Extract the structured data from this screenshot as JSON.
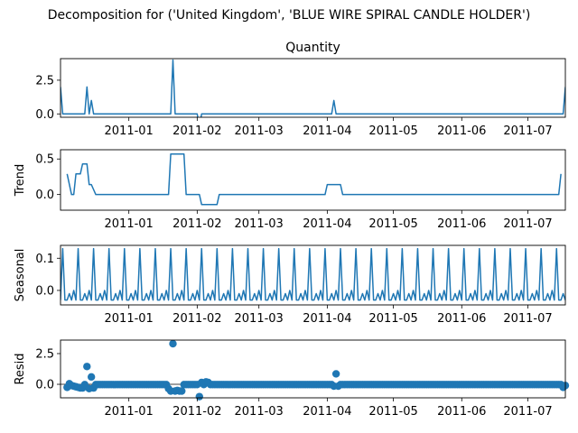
{
  "figure": {
    "suptitle": "Decomposition for ('United Kingdom', 'BLUE WIRE SPIRAL CANDLE HOLDER')"
  },
  "colors": {
    "series": "#1f77b4",
    "axis": "#000000",
    "background": "#ffffff"
  },
  "chart_data": [
    {
      "type": "line",
      "title": "Quantity",
      "ylabel": "",
      "ylim": [
        -0.25,
        4.1
      ],
      "yticks": [
        0.0,
        2.5
      ],
      "ytick_labels": [
        "0.0",
        "2.5"
      ],
      "xtick_labels": [
        "2011-01",
        "2011-02",
        "2011-03",
        "2011-04",
        "2011-05",
        "2011-06",
        "2011-07"
      ],
      "grid": false,
      "x": [
        "2010-12-01",
        "2010-12-02",
        "2010-12-05",
        "2010-12-12",
        "2010-12-13",
        "2010-12-14",
        "2010-12-15",
        "2010-12-16",
        "2011-01-20",
        "2011-01-21",
        "2011-01-22",
        "2011-02-01",
        "2011-02-02",
        "2011-02-03",
        "2011-04-03",
        "2011-04-04",
        "2011-04-05",
        "2011-07-17",
        "2011-07-18"
      ],
      "values": [
        2,
        0,
        0,
        0,
        2,
        0,
        1,
        0,
        0,
        4,
        0,
        0,
        -1,
        0,
        0,
        1,
        0,
        0,
        2
      ]
    },
    {
      "type": "line",
      "title": "",
      "ylabel": "Trend",
      "ylim": [
        -0.22,
        0.63
      ],
      "yticks": [
        0.0,
        0.5
      ],
      "ytick_labels": [
        "0.0",
        "0.5"
      ],
      "xtick_labels": [
        "2011-01",
        "2011-02",
        "2011-03",
        "2011-04",
        "2011-05",
        "2011-06",
        "2011-07"
      ],
      "grid": false,
      "x": [
        "2010-12-04",
        "2010-12-06",
        "2010-12-07",
        "2010-12-08",
        "2010-12-10",
        "2010-12-11",
        "2010-12-13",
        "2010-12-14",
        "2010-12-15",
        "2010-12-17",
        "2010-12-19",
        "2011-01-19",
        "2011-01-20",
        "2011-01-26",
        "2011-01-27",
        "2011-02-02",
        "2011-02-03",
        "2011-02-10",
        "2011-02-11",
        "2011-03-31",
        "2011-04-01",
        "2011-04-07",
        "2011-04-08",
        "2011-07-15",
        "2011-07-16"
      ],
      "values": [
        0.29,
        0.0,
        0.0,
        0.29,
        0.29,
        0.43,
        0.43,
        0.14,
        0.14,
        0.0,
        0.0,
        0.0,
        0.57,
        0.57,
        0.0,
        0.0,
        -0.14,
        -0.14,
        0.0,
        0.0,
        0.14,
        0.14,
        0.0,
        0.0,
        0.29
      ]
    },
    {
      "type": "line",
      "title": "",
      "ylabel": "Seasonal",
      "ylim": [
        -0.045,
        0.14
      ],
      "yticks": [
        0.0,
        0.1
      ],
      "ytick_labels": [
        "0.0",
        "0.1"
      ],
      "xtick_labels": [
        "2011-01",
        "2011-02",
        "2011-03",
        "2011-04",
        "2011-05",
        "2011-06",
        "2011-07"
      ],
      "grid": false,
      "period_days": 7,
      "start": "2010-12-01",
      "end": "2011-07-18",
      "pattern": [
        -0.03,
        0.13,
        -0.03,
        -0.03,
        -0.01,
        -0.03,
        0.0
      ]
    },
    {
      "type": "scatter",
      "title": "",
      "ylabel": "Resid",
      "ylim": [
        -1.1,
        3.6
      ],
      "yticks": [
        0.0,
        2.5
      ],
      "ytick_labels": [
        "0.0",
        "2.5"
      ],
      "xtick_labels": [
        "2011-01",
        "2011-02",
        "2011-03",
        "2011-04",
        "2011-05",
        "2011-06",
        "2011-07"
      ],
      "grid": false,
      "baseline": 0,
      "x_start": "2010-12-04",
      "x_end": "2011-07-18",
      "default_value": -0.02,
      "overrides": [
        {
          "x": "2010-12-04",
          "value": -0.25
        },
        {
          "x": "2010-12-05",
          "value": 0.05
        },
        {
          "x": "2010-12-06",
          "value": -0.1
        },
        {
          "x": "2010-12-07",
          "value": -0.15
        },
        {
          "x": "2010-12-08",
          "value": -0.2
        },
        {
          "x": "2010-12-09",
          "value": -0.25
        },
        {
          "x": "2010-12-10",
          "value": -0.3
        },
        {
          "x": "2010-12-11",
          "value": -0.3
        },
        {
          "x": "2010-12-13",
          "value": 1.45
        },
        {
          "x": "2010-12-14",
          "value": -0.35
        },
        {
          "x": "2010-12-15",
          "value": 0.6
        },
        {
          "x": "2010-12-16",
          "value": -0.3
        },
        {
          "x": "2011-01-19",
          "value": -0.35
        },
        {
          "x": "2011-01-20",
          "value": -0.55
        },
        {
          "x": "2011-01-21",
          "value": 3.3
        },
        {
          "x": "2011-01-22",
          "value": -0.55
        },
        {
          "x": "2011-01-23",
          "value": -0.5
        },
        {
          "x": "2011-01-24",
          "value": -0.55
        },
        {
          "x": "2011-01-25",
          "value": -0.55
        },
        {
          "x": "2011-02-02",
          "value": -1.0
        },
        {
          "x": "2011-02-03",
          "value": 0.15
        },
        {
          "x": "2011-02-05",
          "value": 0.2
        },
        {
          "x": "2011-02-06",
          "value": 0.15
        },
        {
          "x": "2011-04-04",
          "value": -0.15
        },
        {
          "x": "2011-04-05",
          "value": 0.85
        },
        {
          "x": "2011-04-06",
          "value": -0.15
        },
        {
          "x": "2011-07-17",
          "value": -0.25
        },
        {
          "x": "2011-07-18",
          "value": -0.1
        }
      ]
    }
  ]
}
